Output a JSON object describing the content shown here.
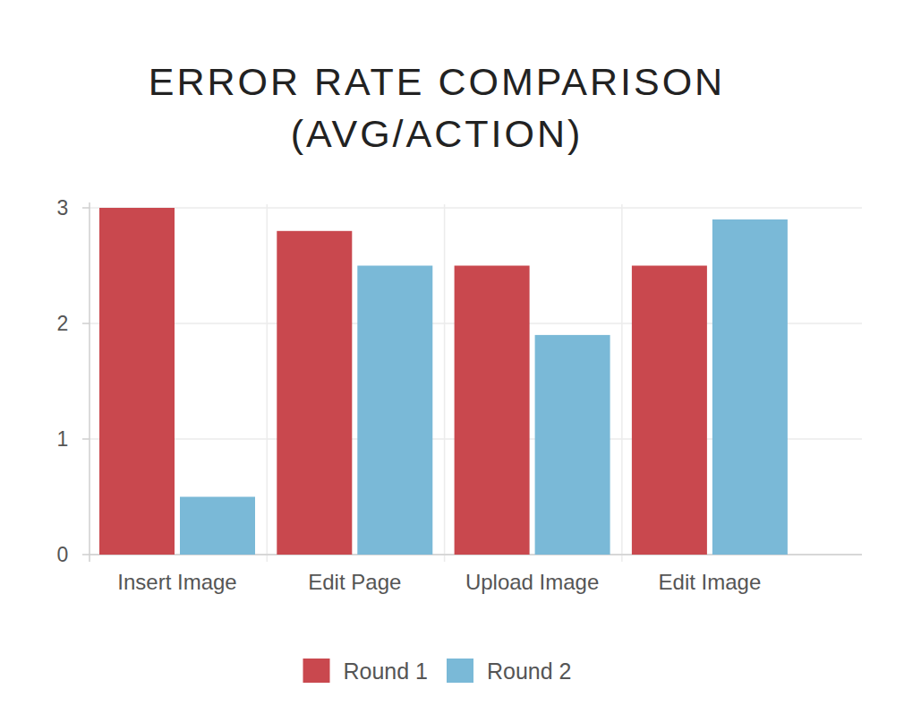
{
  "chart_data": {
    "type": "bar",
    "title": "ERROR RATE COMPARISON",
    "subtitle": "(AVG/ACTION)",
    "categories": [
      "Insert Image",
      "Edit Page",
      "Upload Image",
      "Edit Image"
    ],
    "series": [
      {
        "name": "Round 1",
        "color": "#c9484e",
        "values": [
          3.0,
          2.8,
          2.5,
          2.5
        ]
      },
      {
        "name": "Round 2",
        "color": "#7ab9d7",
        "values": [
          0.5,
          2.5,
          1.9,
          2.9
        ]
      }
    ],
    "ylim": [
      0,
      3
    ],
    "yticks": [
      0,
      1,
      2,
      3
    ],
    "grid": true,
    "legend": "bottom"
  }
}
